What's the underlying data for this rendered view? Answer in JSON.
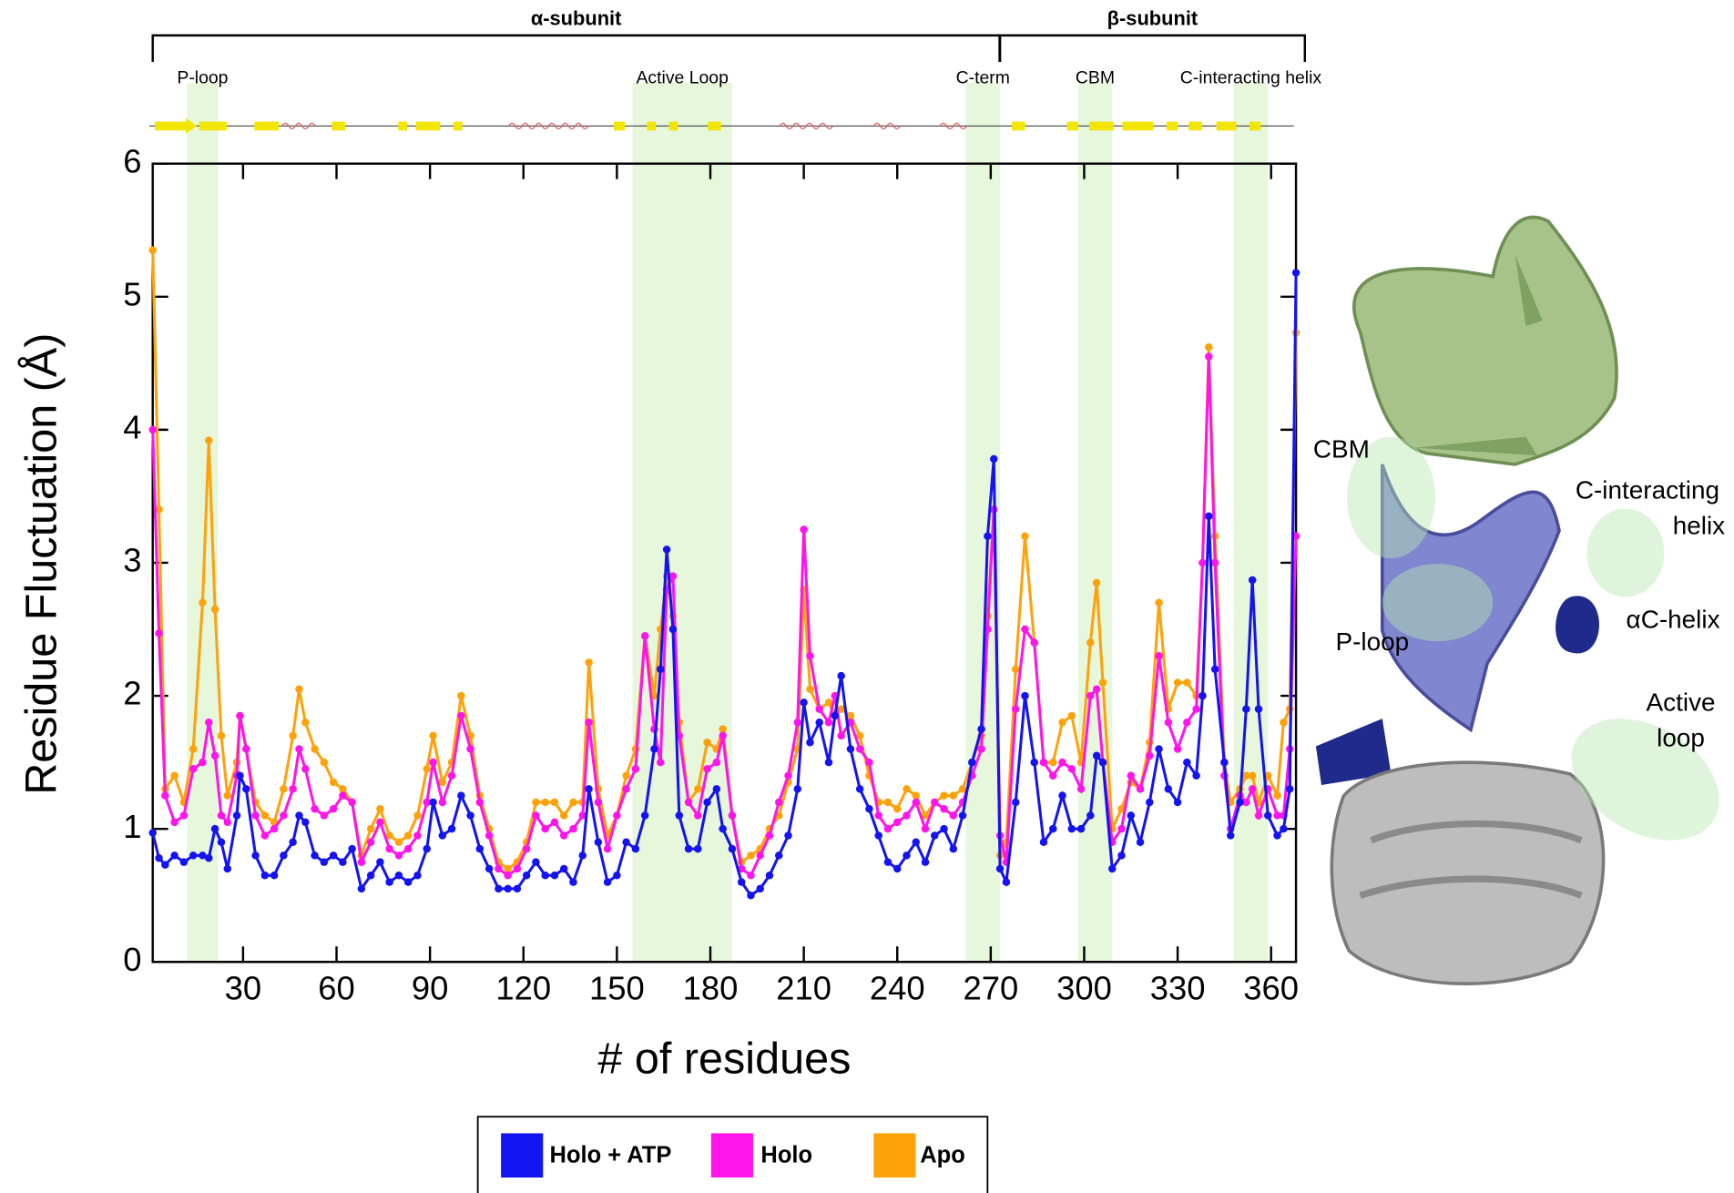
{
  "chart_data": {
    "type": "line",
    "x_label": "# of residues",
    "y_label": "Residue Fluctuation (Å)",
    "xlim": [
      1,
      368
    ],
    "ylim": [
      0,
      6
    ],
    "xticks": [
      30,
      60,
      90,
      120,
      150,
      180,
      210,
      240,
      270,
      300,
      330,
      360
    ],
    "yticks": [
      0,
      1,
      2,
      3,
      4,
      5,
      6
    ],
    "subunits": [
      {
        "label": "α-subunit",
        "start": 1,
        "end": 270
      },
      {
        "label": "β-subunit",
        "start": 273,
        "end": 368
      }
    ],
    "regions": [
      {
        "label": "P-loop",
        "start": 12,
        "end": 22
      },
      {
        "label": "Active Loop",
        "start": 155,
        "end": 187
      },
      {
        "label": "C-term",
        "start": 262,
        "end": 273
      },
      {
        "label": "CBM",
        "start": 298,
        "end": 309
      },
      {
        "label": "C-interacting helix",
        "start": 348,
        "end": 359
      }
    ],
    "region_color": "#e6f7dc",
    "x": [
      1,
      3,
      5,
      8,
      11,
      14,
      17,
      19,
      21,
      23,
      25,
      28,
      29,
      31,
      34,
      37,
      40,
      43,
      46,
      48,
      50,
      53,
      56,
      59,
      62,
      65,
      68,
      71,
      74,
      77,
      80,
      83,
      86,
      89,
      91,
      94,
      97,
      100,
      103,
      106,
      109,
      112,
      115,
      118,
      121,
      124,
      127,
      130,
      133,
      136,
      139,
      141,
      144,
      147,
      150,
      153,
      156,
      159,
      162,
      164,
      166,
      168,
      170,
      173,
      176,
      179,
      182,
      184,
      187,
      190,
      193,
      196,
      199,
      202,
      205,
      208,
      210,
      212,
      215,
      218,
      220,
      222,
      225,
      228,
      231,
      234,
      237,
      240,
      243,
      246,
      249,
      252,
      255,
      258,
      261,
      264,
      267,
      269,
      271,
      273,
      275,
      278,
      281,
      284,
      287,
      290,
      293,
      296,
      299,
      302,
      304,
      306,
      309,
      312,
      315,
      318,
      321,
      324,
      327,
      330,
      333,
      336,
      338,
      340,
      342,
      345,
      347,
      350,
      352,
      354,
      356,
      359,
      362,
      364,
      366,
      368
    ],
    "series": [
      {
        "name": "Holo + ATP",
        "color": "#1414f0",
        "values": [
          0.97,
          0.78,
          0.73,
          0.8,
          0.75,
          0.8,
          0.8,
          0.78,
          1.0,
          0.9,
          0.7,
          1.1,
          1.4,
          1.3,
          0.8,
          0.65,
          0.65,
          0.8,
          0.9,
          1.1,
          1.05,
          0.8,
          0.75,
          0.8,
          0.75,
          0.85,
          0.55,
          0.65,
          0.75,
          0.6,
          0.65,
          0.6,
          0.65,
          0.85,
          1.2,
          0.95,
          1.0,
          1.25,
          1.1,
          0.85,
          0.7,
          0.55,
          0.55,
          0.55,
          0.65,
          0.75,
          0.65,
          0.65,
          0.7,
          0.6,
          0.8,
          1.3,
          0.9,
          0.6,
          0.65,
          0.9,
          0.85,
          1.1,
          1.6,
          2.2,
          3.1,
          2.5,
          1.1,
          0.85,
          0.85,
          1.2,
          1.3,
          1.0,
          0.85,
          0.6,
          0.5,
          0.55,
          0.65,
          0.8,
          0.95,
          1.3,
          1.95,
          1.65,
          1.8,
          1.5,
          1.85,
          2.15,
          1.6,
          1.3,
          1.15,
          0.95,
          0.75,
          0.7,
          0.8,
          0.9,
          0.75,
          0.95,
          1.0,
          0.85,
          1.1,
          1.5,
          1.75,
          3.2,
          3.78,
          0.7,
          0.6,
          1.2,
          2.0,
          1.5,
          0.9,
          1.0,
          1.25,
          1.0,
          1.0,
          1.1,
          1.55,
          1.5,
          0.7,
          0.8,
          1.1,
          0.9,
          1.2,
          1.6,
          1.3,
          1.2,
          1.5,
          1.4,
          2.0,
          3.35,
          2.2,
          1.5,
          0.95,
          1.2,
          1.9,
          2.87,
          1.9,
          1.1,
          0.95,
          1.0,
          1.3,
          5.18
        ]
      },
      {
        "name": "Holo",
        "color": "#ff14ea",
        "values": [
          4.0,
          2.47,
          1.25,
          1.05,
          1.1,
          1.45,
          1.5,
          1.8,
          1.55,
          1.1,
          1.05,
          1.4,
          1.85,
          1.6,
          1.1,
          0.95,
          1.0,
          1.1,
          1.3,
          1.6,
          1.45,
          1.15,
          1.1,
          1.15,
          1.25,
          1.2,
          0.75,
          0.9,
          1.05,
          0.85,
          0.8,
          0.85,
          0.95,
          1.2,
          1.5,
          1.2,
          1.4,
          1.85,
          1.6,
          1.2,
          0.95,
          0.7,
          0.65,
          0.7,
          0.85,
          1.1,
          1.0,
          1.05,
          0.95,
          1.0,
          1.1,
          1.8,
          1.2,
          0.85,
          1.1,
          1.3,
          1.45,
          2.45,
          1.75,
          1.5,
          2.8,
          2.9,
          1.7,
          1.2,
          1.1,
          1.45,
          1.5,
          1.7,
          1.1,
          0.7,
          0.65,
          0.8,
          0.95,
          1.2,
          1.4,
          1.8,
          3.25,
          2.3,
          1.9,
          1.8,
          2.0,
          1.7,
          1.8,
          1.6,
          1.5,
          1.1,
          1.0,
          1.05,
          1.1,
          1.2,
          1.0,
          1.2,
          1.15,
          1.1,
          1.2,
          1.4,
          1.6,
          2.5,
          3.4,
          0.95,
          0.75,
          1.9,
          2.5,
          2.4,
          1.5,
          1.4,
          1.5,
          1.45,
          1.3,
          2.0,
          2.05,
          1.5,
          0.9,
          1.0,
          1.4,
          1.3,
          1.55,
          2.3,
          1.8,
          1.6,
          1.8,
          1.9,
          3.0,
          4.55,
          3.0,
          1.4,
          1.0,
          1.25,
          1.2,
          1.3,
          1.1,
          1.3,
          1.1,
          1.1,
          1.6,
          3.2
        ]
      },
      {
        "name": "Apo",
        "color": "#ffa20a",
        "values": [
          5.35,
          3.4,
          1.3,
          1.4,
          1.2,
          1.6,
          2.7,
          3.92,
          2.65,
          1.7,
          1.25,
          1.5,
          1.85,
          1.6,
          1.2,
          1.1,
          1.05,
          1.3,
          1.7,
          2.05,
          1.8,
          1.6,
          1.5,
          1.35,
          1.3,
          1.2,
          0.8,
          1.0,
          1.15,
          0.95,
          0.9,
          0.95,
          1.1,
          1.45,
          1.7,
          1.35,
          1.5,
          2.0,
          1.7,
          1.25,
          1.0,
          0.75,
          0.7,
          0.75,
          0.9,
          1.2,
          1.2,
          1.2,
          1.1,
          1.2,
          1.2,
          2.25,
          1.3,
          0.95,
          1.1,
          1.4,
          1.6,
          2.45,
          2.0,
          2.5,
          2.9,
          2.6,
          1.8,
          1.2,
          1.3,
          1.65,
          1.6,
          1.75,
          1.1,
          0.75,
          0.8,
          0.85,
          1.0,
          1.1,
          1.35,
          1.6,
          2.8,
          2.05,
          1.9,
          1.95,
          1.85,
          1.9,
          1.85,
          1.7,
          1.4,
          1.2,
          1.2,
          1.15,
          1.3,
          1.25,
          1.1,
          1.2,
          1.25,
          1.25,
          1.3,
          1.5,
          1.7,
          2.6,
          3.4,
          0.8,
          0.9,
          2.2,
          3.2,
          2.4,
          1.5,
          1.5,
          1.8,
          1.85,
          1.5,
          2.4,
          2.85,
          2.1,
          1.0,
          1.15,
          1.35,
          1.3,
          1.65,
          2.7,
          1.9,
          2.1,
          2.1,
          2.0,
          3.0,
          4.62,
          3.2,
          1.5,
          1.2,
          1.3,
          1.4,
          1.4,
          1.2,
          1.4,
          1.25,
          1.8,
          1.9,
          4.73
        ]
      }
    ]
  },
  "structure_panel": {
    "labels": [
      [
        "CBM"
      ],
      [
        "C-interacting",
        "helix"
      ],
      [
        "αC-helix"
      ],
      [
        "P-loop"
      ],
      [
        "Active",
        "loop"
      ]
    ]
  }
}
